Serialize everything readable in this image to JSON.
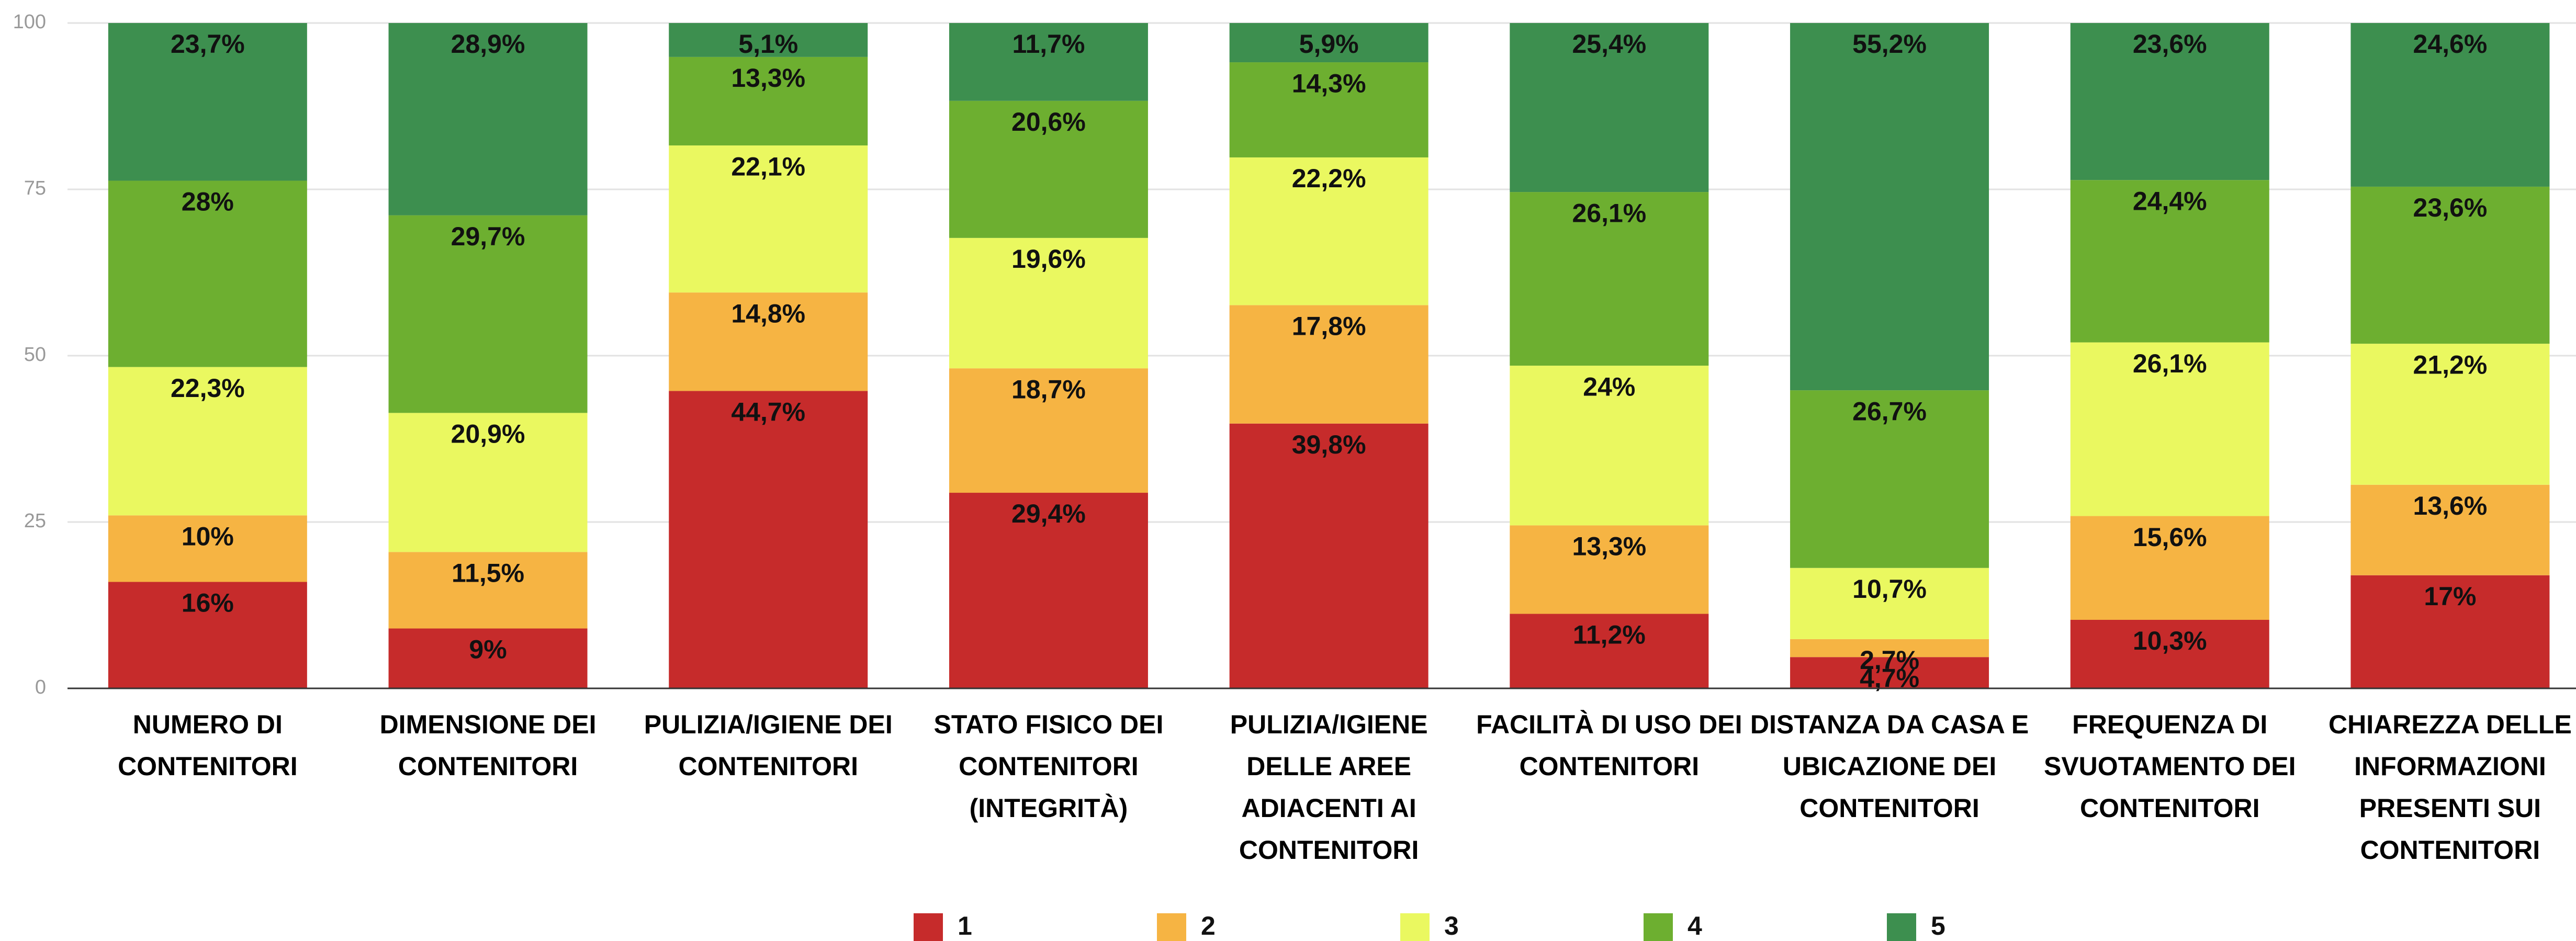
{
  "chart_data": {
    "type": "bar",
    "stacked": true,
    "categories": [
      "NUMERO DI CONTENITORI",
      "DIMENSIONE DEI CONTENITORI",
      "PULIZIA/IGIENE DEI CONTENITORI",
      "STATO FISICO DEI CONTENITORI (INTEGRITÀ)",
      "PULIZIA/IGIENE DELLE AREE ADIACENTI AI CONTENITORI",
      "FACILITÀ DI USO DEI CONTENITORI",
      "DISTANZA DA CASA E UBICAZIONE DEI CONTENITORI",
      "FREQUENZA DI SVUOTAMENTO DEI CONTENITORI",
      "CHIAREZZA DELLE INFORMAZIONI PRESENTI SUI CONTENITORI"
    ],
    "series": [
      {
        "name": "1",
        "color": "#c62b2b",
        "values": [
          16,
          9,
          44.7,
          29.4,
          39.8,
          11.2,
          4.7,
          10.3,
          17
        ],
        "value_labels": [
          "16%",
          "9%",
          "44,7%",
          "29,4%",
          "39,8%",
          "11,2%",
          "4,7%",
          "10,3%",
          "17%"
        ]
      },
      {
        "name": "2",
        "color": "#f6b443",
        "values": [
          10,
          11.5,
          14.8,
          18.7,
          17.8,
          13.3,
          2.7,
          15.6,
          13.6
        ],
        "value_labels": [
          "10%",
          "11,5%",
          "14,8%",
          "18,7%",
          "17,8%",
          "13,3%",
          "2,7%",
          "15,6%",
          "13,6%"
        ]
      },
      {
        "name": "3",
        "color": "#eaf860",
        "values": [
          22.3,
          20.9,
          22.1,
          19.6,
          22.2,
          24,
          10.7,
          26.1,
          21.2
        ],
        "value_labels": [
          "22,3%",
          "20,9%",
          "22,1%",
          "19,6%",
          "22,2%",
          "24%",
          "10,7%",
          "26,1%",
          "21,2%"
        ]
      },
      {
        "name": "4",
        "color": "#6daf30",
        "values": [
          28,
          29.7,
          13.3,
          20.6,
          14.3,
          26.1,
          26.7,
          24.4,
          23.6
        ],
        "value_labels": [
          "28%",
          "29,7%",
          "13,3%",
          "20,6%",
          "14,3%",
          "26,1%",
          "26,7%",
          "24,4%",
          "23,6%"
        ]
      },
      {
        "name": "5",
        "color": "#3d8f4f",
        "values": [
          23.7,
          28.9,
          5.1,
          11.7,
          5.9,
          25.4,
          55.2,
          23.6,
          24.6
        ],
        "value_labels": [
          "23,7%",
          "28,9%",
          "5,1%",
          "11,7%",
          "5,9%",
          "25,4%",
          "55,2%",
          "23,6%",
          "24,6%"
        ]
      }
    ],
    "ylim": [
      0,
      100
    ],
    "yticks": [
      0,
      25,
      50,
      75,
      100
    ],
    "grid": true,
    "legend": "bottom"
  }
}
